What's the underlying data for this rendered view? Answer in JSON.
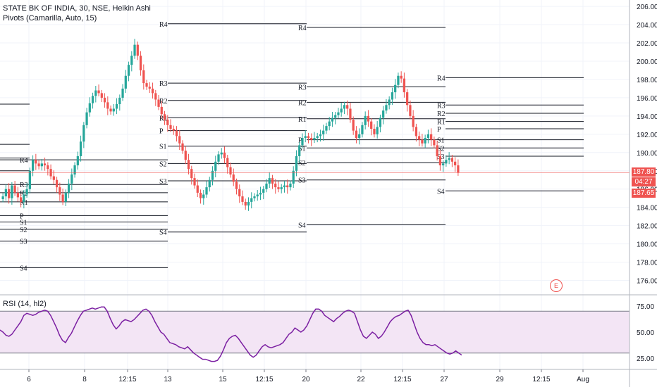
{
  "header": {
    "symbol_line": "STATE BK OF INDIA, 30, NSE, Heikin Ashi",
    "indicator_line": "Pivots (Camarilla, Auto, 15)"
  },
  "rsi_label": "RSI (14, hl2)",
  "event_badge": "E",
  "price_tags": {
    "last_close": "187.80",
    "countdown": "04:27",
    "ha_price": "187.65"
  },
  "colors": {
    "up": "#26a69a",
    "down": "#ef5350",
    "rsi_line": "#7b1fa2",
    "rsi_band": "#f3e5f5",
    "pivot": "#131722",
    "last_line": "#ef5350"
  },
  "chart_data": [
    {
      "type": "candlestick",
      "y_axis": {
        "ticks": [
          "206.00",
          "204.00",
          "202.00",
          "200.00",
          "198.00",
          "196.00",
          "194.00",
          "192.00",
          "190.00",
          "188.00",
          "186.00",
          "184.00",
          "182.00",
          "180.00",
          "178.00",
          "176.00"
        ],
        "range": [
          174.5,
          206.7
        ]
      },
      "x_axis": {
        "ticks": [
          "6",
          "8",
          "12:15",
          "13",
          "15",
          "12:15",
          "20",
          "22",
          "12:15",
          "27",
          "29",
          "12:15",
          "Aug"
        ]
      },
      "last_price": 187.8,
      "close_path": [
        185.2,
        186,
        185,
        186.4,
        185.6,
        185.1,
        184.6,
        185.4,
        186,
        188,
        189.2,
        188.8,
        188.5,
        188.8,
        188.6,
        188.2,
        187.4,
        187,
        186.2,
        185.4,
        184.6,
        185.6,
        186.6,
        187.6,
        188.6,
        189.6,
        191.2,
        193,
        194.4,
        195.4,
        196.2,
        196.8,
        196.5,
        196,
        195.5,
        194.8,
        194.5,
        194.8,
        195.3,
        196,
        197,
        198.4,
        199.6,
        200.6,
        201.8,
        200.6,
        199,
        197.6,
        197.2,
        197,
        196.5,
        195.8,
        195,
        194.2,
        193.6,
        193,
        192.6,
        192.4,
        191.8,
        191,
        190.2,
        189.2,
        188.2,
        187.2,
        186.4,
        185.6,
        185,
        185.4,
        186.2,
        187,
        188,
        189,
        189.8,
        190,
        189.4,
        188.4,
        187.6,
        186.8,
        186,
        185.2,
        184.6,
        184.2,
        184.6,
        185,
        185.2,
        185.4,
        185.6,
        186,
        186.6,
        187.2,
        186.6,
        186.2,
        186,
        186.2,
        186.4,
        186.2,
        186.6,
        188,
        189.6,
        190.8,
        191.6,
        191.8,
        191.6,
        191.4,
        191.6,
        191.8,
        192,
        192.4,
        192.9,
        193.4,
        193.8,
        194.1,
        194.4,
        194.8,
        195.2,
        194.8,
        193.6,
        192.4,
        191.6,
        192,
        193,
        194,
        193.4,
        192.6,
        192,
        192.8,
        193.8,
        194.6,
        195.2,
        195.8,
        196.6,
        197.4,
        198.4,
        198.1,
        196.6,
        195.2,
        194,
        192.8,
        191.8,
        191.4,
        191,
        191.6,
        192,
        191.4,
        190.8,
        189.6,
        188.6,
        188.8,
        189.2,
        189.4,
        189,
        188.6,
        187.8
      ],
      "pivots": [
        {
          "label": "R4",
          "price": 204.1,
          "segment": 2
        },
        {
          "label": "R3",
          "price": 197.6,
          "segment": 2
        },
        {
          "label": "R2",
          "price": 195.7,
          "segment": 2
        },
        {
          "label": "R1",
          "price": 193.8,
          "segment": 2
        },
        {
          "label": "P",
          "price": 192.4,
          "segment": 2
        },
        {
          "label": "S1",
          "price": 190.7,
          "segment": 2
        },
        {
          "label": "S2",
          "price": 188.8,
          "segment": 2
        },
        {
          "label": "S3",
          "price": 186.9,
          "segment": 2
        },
        {
          "label": "S4",
          "price": 181.3,
          "segment": 2
        },
        {
          "label": "R4",
          "price": 203.7,
          "segment": 3
        },
        {
          "label": "R3",
          "price": 197.2,
          "segment": 3
        },
        {
          "label": "R2",
          "price": 195.5,
          "segment": 3
        },
        {
          "label": "R1",
          "price": 193.7,
          "segment": 3
        },
        {
          "label": "P",
          "price": 191.4,
          "segment": 3
        },
        {
          "label": "S1",
          "price": 190.5,
          "segment": 3
        },
        {
          "label": "S2",
          "price": 188.9,
          "segment": 3
        },
        {
          "label": "S3",
          "price": 187.0,
          "segment": 3
        },
        {
          "label": "S4",
          "price": 182.1,
          "segment": 3
        },
        {
          "label": "R4",
          "price": 198.2,
          "segment": 4
        },
        {
          "label": "R3",
          "price": 195.2,
          "segment": 4
        },
        {
          "label": "R2",
          "price": 194.3,
          "segment": 4
        },
        {
          "label": "R1",
          "price": 193.4,
          "segment": 4
        },
        {
          "label": "P",
          "price": 192.6,
          "segment": 4
        },
        {
          "label": "S1",
          "price": 191.4,
          "segment": 4
        },
        {
          "label": "S2",
          "price": 190.5,
          "segment": 4
        },
        {
          "label": "S3",
          "price": 189.6,
          "segment": 4
        },
        {
          "label": "S4",
          "price": 185.8,
          "segment": 4
        },
        {
          "label": "R4",
          "price": 189.2,
          "segment": 1
        },
        {
          "label": "R3",
          "price": 186.5,
          "segment": 1
        },
        {
          "label": "R2",
          "price": 185.6,
          "segment": 1
        },
        {
          "label": "R1",
          "price": 184.6,
          "segment": 1
        },
        {
          "label": "P",
          "price": 183.1,
          "segment": 1
        },
        {
          "label": "S1",
          "price": 182.4,
          "segment": 1
        },
        {
          "label": "S2",
          "price": 181.6,
          "segment": 1
        },
        {
          "label": "S3",
          "price": 180.3,
          "segment": 1
        },
        {
          "label": "S4",
          "price": 177.4,
          "segment": 1
        },
        {
          "label": "",
          "price": 195.3,
          "segment": 0
        },
        {
          "label": "",
          "price": 190.9,
          "segment": 0
        },
        {
          "label": "",
          "price": 189.4,
          "segment": 0
        },
        {
          "label": "",
          "price": 188.0,
          "segment": 0
        }
      ]
    },
    {
      "type": "line",
      "title": "RSI (14, hl2)",
      "y_axis": {
        "ticks": [
          "75.00",
          "50.00",
          "25.00"
        ],
        "range": [
          15,
          85
        ]
      },
      "band": [
        30,
        70
      ],
      "values": [
        52,
        50,
        47,
        46,
        48,
        52,
        56,
        60,
        66,
        68,
        67,
        66,
        67,
        69,
        70,
        71,
        70,
        66,
        60,
        54,
        47,
        42,
        40,
        45,
        49,
        55,
        61,
        66,
        70,
        71,
        72,
        73,
        72,
        73,
        74,
        74,
        70,
        63,
        57,
        53,
        56,
        60,
        62,
        61,
        60,
        62,
        65,
        68,
        71,
        72,
        70,
        66,
        60,
        55,
        50,
        48,
        44,
        40,
        39,
        38,
        36,
        35,
        34,
        36,
        33,
        30,
        28,
        26,
        24,
        24,
        23,
        22,
        22,
        23,
        27,
        33,
        40,
        44,
        46,
        47,
        44,
        40,
        36,
        32,
        28,
        26,
        28,
        32,
        36,
        38,
        36,
        35,
        36,
        37,
        38,
        40,
        44,
        48,
        50,
        54,
        52,
        50,
        52,
        56,
        62,
        68,
        72,
        72,
        70,
        66,
        64,
        62,
        60,
        63,
        65,
        68,
        70,
        71,
        70,
        68,
        60,
        52,
        46,
        44,
        47,
        50,
        48,
        44,
        46,
        50,
        55,
        60,
        63,
        65,
        66,
        68,
        70,
        71,
        66,
        58,
        50,
        44,
        40,
        38,
        38,
        37,
        38,
        36,
        34,
        32,
        30,
        29,
        30,
        32,
        30,
        28
      ]
    }
  ]
}
